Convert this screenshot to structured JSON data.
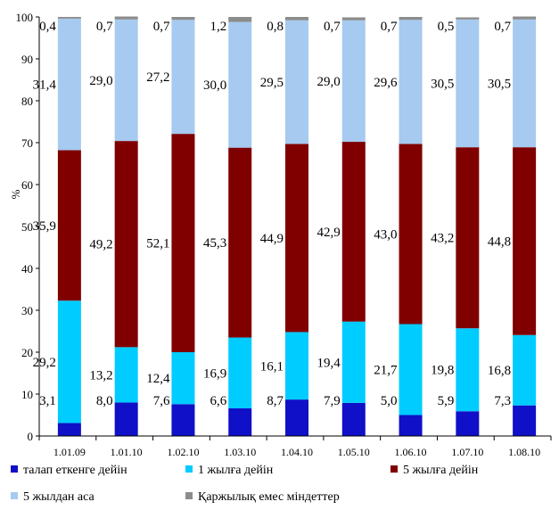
{
  "chart_data": {
    "type": "bar",
    "stacked": true,
    "ylabel": "%",
    "ylim": [
      0,
      100
    ],
    "yticks": [
      0,
      10,
      20,
      30,
      40,
      50,
      60,
      70,
      80,
      90,
      100
    ],
    "categories": [
      "1.01.09",
      "1.01.10",
      "1.02.10",
      "1.03.10",
      "1.04.10",
      "1.05.10",
      "1.06.10",
      "1.07.10",
      "1.08.10"
    ],
    "series": [
      {
        "name": "талап еткенге дейін",
        "color": "#1010c8",
        "values": [
          3.1,
          8.0,
          7.6,
          6.6,
          8.7,
          7.9,
          5.0,
          5.9,
          7.3
        ],
        "labels": [
          "3,1",
          "8,0",
          "7,6",
          "6,6",
          "8,7",
          "7,9",
          "5,0",
          "5,9",
          "7,3"
        ]
      },
      {
        "name": "1 жылға дейін",
        "color": "#00ccff",
        "values": [
          29.2,
          13.2,
          12.4,
          16.9,
          16.1,
          19.4,
          21.7,
          19.8,
          16.8
        ],
        "labels": [
          "29,2",
          "13,2",
          "12,4",
          "16,9",
          "16,1",
          "19,4",
          "21,7",
          "19,8",
          "16,8"
        ]
      },
      {
        "name": "5 жылға дейін",
        "color": "#800000",
        "values": [
          35.9,
          49.2,
          52.1,
          45.3,
          44.9,
          42.9,
          43.0,
          43.2,
          44.8
        ],
        "labels": [
          "35,9",
          "49,2",
          "52,1",
          "45,3",
          "44,9",
          "42,9",
          "43,0",
          "43,2",
          "44,8"
        ]
      },
      {
        "name": "5 жылдан аса",
        "color": "#a6caf0",
        "values": [
          31.4,
          29.0,
          27.2,
          30.0,
          29.5,
          29.0,
          29.6,
          30.5,
          30.5
        ],
        "labels": [
          "31,4",
          "29,0",
          "27,2",
          "30,0",
          "29,5",
          "29,0",
          "29,6",
          "30,5",
          "30,5"
        ]
      },
      {
        "name": "Қаржылық емес міндеттер",
        "color": "#8c8c8c",
        "values": [
          0.4,
          0.7,
          0.7,
          1.2,
          0.8,
          0.7,
          0.7,
          0.5,
          0.7
        ],
        "labels": [
          "0,4",
          "0,7",
          "0,7",
          "1,2",
          "0,8",
          "0,7",
          "0,7",
          "0,5",
          "0,7"
        ]
      }
    ],
    "legend_position": "bottom",
    "grid": false
  }
}
